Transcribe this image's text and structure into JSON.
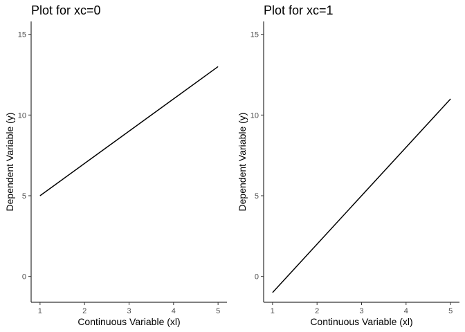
{
  "chart_data": [
    {
      "type": "line",
      "title": "Plot for xc=0",
      "xlabel": "Continuous Variable (xl)",
      "ylabel": "Dependent Variable (y)",
      "xlim": [
        0.8,
        5.2
      ],
      "ylim": [
        -1.6,
        15.8
      ],
      "xticks": [
        1,
        2,
        3,
        4,
        5
      ],
      "yticks": [
        0,
        5,
        10,
        15
      ],
      "grid": false,
      "series": [
        {
          "x": [
            1,
            5
          ],
          "y": [
            5,
            13
          ],
          "color": "#000000"
        }
      ]
    },
    {
      "type": "line",
      "title": "Plot for xc=1",
      "xlabel": "Continuous Variable (xl)",
      "ylabel": "Dependent Variable (y)",
      "xlim": [
        0.8,
        5.2
      ],
      "ylim": [
        -1.6,
        15.8
      ],
      "xticks": [
        1,
        2,
        3,
        4,
        5
      ],
      "yticks": [
        0,
        5,
        10,
        15
      ],
      "grid": false,
      "series": [
        {
          "x": [
            1,
            5
          ],
          "y": [
            -1,
            11
          ],
          "color": "#000000"
        }
      ]
    }
  ]
}
